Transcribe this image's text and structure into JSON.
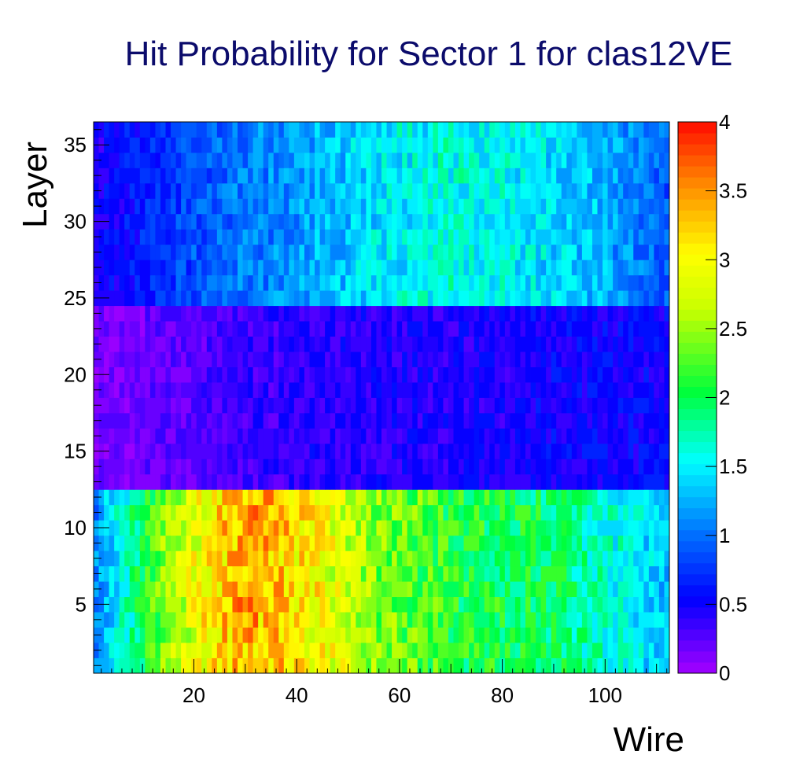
{
  "chart_data": {
    "type": "heatmap",
    "title": "Hit Probability for Sector 1 for clas12VE",
    "xlabel": "Wire",
    "ylabel": "Layer",
    "xlim": [
      0.5,
      112.5
    ],
    "ylim": [
      0.5,
      36.5
    ],
    "zlim": [
      0,
      4
    ],
    "x_ticks": [
      20,
      40,
      60,
      80,
      100
    ],
    "y_ticks": [
      5,
      10,
      15,
      20,
      25,
      30,
      35
    ],
    "z_ticks": [
      "0",
      "0.5",
      "1",
      "1.5",
      "2",
      "2.5",
      "3",
      "3.5",
      "4"
    ],
    "n_wires": 112,
    "n_layers": 36,
    "superlayers": [
      {
        "layers": [
          1,
          12
        ],
        "profile": [
          [
            1,
            1.1
          ],
          [
            6,
            1.6
          ],
          [
            14,
            2.4
          ],
          [
            22,
            3.0
          ],
          [
            30,
            3.4
          ],
          [
            38,
            3.2
          ],
          [
            46,
            2.9
          ],
          [
            56,
            2.4
          ],
          [
            70,
            2.1
          ],
          [
            82,
            2.0
          ],
          [
            92,
            1.9
          ],
          [
            102,
            1.6
          ],
          [
            112,
            1.3
          ]
        ]
      },
      {
        "layers": [
          13,
          24
        ],
        "profile": [
          [
            1,
            0.15
          ],
          [
            10,
            0.2
          ],
          [
            20,
            0.25
          ],
          [
            30,
            0.35
          ],
          [
            40,
            0.4
          ],
          [
            55,
            0.42
          ],
          [
            70,
            0.45
          ],
          [
            90,
            0.5
          ],
          [
            112,
            0.55
          ]
        ]
      },
      {
        "layers": [
          25,
          36
        ],
        "profile": [
          [
            1,
            0.45
          ],
          [
            10,
            0.65
          ],
          [
            20,
            0.85
          ],
          [
            30,
            1.05
          ],
          [
            40,
            1.15
          ],
          [
            55,
            1.45
          ],
          [
            70,
            1.6
          ],
          [
            85,
            1.5
          ],
          [
            100,
            1.25
          ],
          [
            112,
            0.9
          ]
        ]
      }
    ],
    "colormap": "rainbow"
  }
}
